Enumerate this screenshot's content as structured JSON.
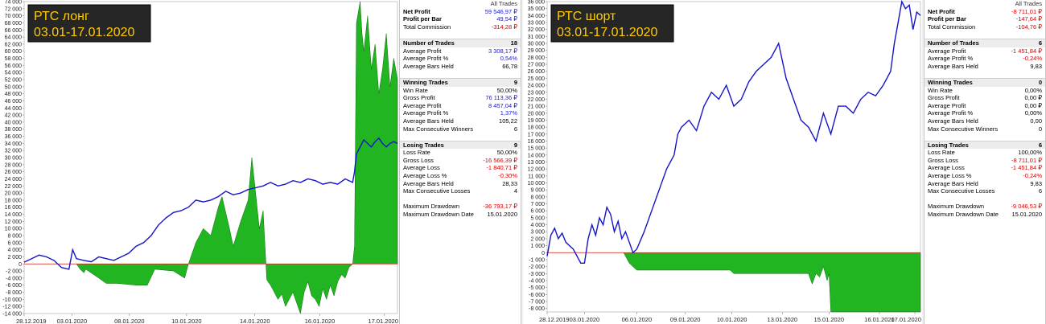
{
  "colors": {
    "equity": "#1414c8",
    "positive": "#22b522",
    "negative": "#22b522",
    "zero": "#dd2222",
    "badge_bg": "#262626",
    "badge_text": "#ffcc00"
  },
  "charts": [
    {
      "badge": {
        "line1": "РТС лонг",
        "line2": "03.01-17.01.2020"
      },
      "chart_data": {
        "type": "line",
        "ylim": [
          -14000,
          74000
        ],
        "ytick_step": 2000,
        "xlim": [
          0,
          100
        ],
        "xticks": [
          {
            "x": 0,
            "label": "28.12.2019"
          },
          {
            "x": 12.8,
            "label": "03.01.2020"
          },
          {
            "x": 28.2,
            "label": "08.01.2020"
          },
          {
            "x": 43.5,
            "label": "10.01.2020"
          },
          {
            "x": 61.8,
            "label": "14.01.2020"
          },
          {
            "x": 79.2,
            "label": "16.01.2020"
          },
          {
            "x": 96.5,
            "label": "17.01.2020"
          }
        ],
        "series": [
          {
            "kind": "equity",
            "x": [
              0,
              2,
              4,
              6,
              8,
              10,
              12,
              13,
              14,
              16,
              18,
              20,
              22,
              24,
              26,
              28,
              30,
              32,
              34,
              36,
              38,
              40,
              42,
              44,
              46,
              48,
              50,
              52,
              54,
              56,
              58,
              60,
              62,
              64,
              66,
              68,
              70,
              72,
              74,
              76,
              78,
              80,
              82,
              84,
              86,
              88,
              88.5,
              89,
              90,
              91,
              92,
              93,
              94,
              95,
              96,
              97,
              98,
              99,
              100
            ],
            "y": [
              500,
              1500,
              2500,
              2000,
              1000,
              -1000,
              -1500,
              4000,
              1500,
              1000,
              600,
              2000,
              1500,
              1000,
              2000,
              3000,
              5000,
              6000,
              8000,
              11000,
              13000,
              14500,
              15000,
              16000,
              18000,
              17500,
              18000,
              19000,
              20500,
              19500,
              20000,
              21000,
              21500,
              22000,
              23000,
              22000,
              22500,
              23500,
              23000,
              24000,
              23500,
              22500,
              23000,
              22500,
              24000,
              23000,
              26000,
              31000,
              33000,
              35000,
              34000,
              33000,
              34500,
              35500,
              34000,
              33000,
              34000,
              34500,
              34000
            ]
          },
          {
            "kind": "profit_area",
            "x": [
              0,
              13,
              14,
              15,
              16,
              16.5,
              20,
              22,
              25,
              30,
              33,
              35,
              40,
              43,
              44,
              46,
              48,
              50,
              52,
              53,
              55,
              56,
              58,
              60,
              61,
              62,
              63,
              64,
              65,
              66,
              67,
              68,
              69,
              70,
              71,
              72,
              73,
              74,
              75,
              76,
              77,
              78,
              79,
              80,
              81,
              82,
              83,
              84,
              85,
              86,
              87,
              88,
              88.5,
              89,
              90,
              90.5,
              91,
              92,
              93,
              94,
              95,
              96,
              97,
              98,
              99,
              100
            ],
            "y": [
              0,
              0,
              0,
              -1500,
              -2500,
              -1500,
              -4000,
              -5500,
              -5500,
              -6000,
              -6000,
              -1500,
              -2000,
              -4000,
              0,
              6000,
              10000,
              8000,
              16000,
              19000,
              10000,
              5000,
              12000,
              18000,
              30000,
              20000,
              10000,
              15000,
              -4500,
              -6000,
              -8000,
              -10000,
              -8500,
              -12000,
              -10000,
              -8000,
              -11000,
              -14000,
              -8000,
              -5000,
              -9000,
              -10000,
              -12000,
              -7000,
              -10000,
              -6000,
              -9000,
              -5000,
              -3000,
              -4000,
              -1000,
              0,
              5000,
              68000,
              74000,
              65000,
              60000,
              70000,
              55000,
              62000,
              48000,
              55000,
              65000,
              50000,
              58000,
              52000
            ]
          }
        ]
      },
      "stats": {
        "header": "All Trades",
        "rows": [
          {
            "k": "Net Profit",
            "v": "59 546,97 ₽",
            "cls": "posb",
            "bold": true
          },
          {
            "k": "Profit per Bar",
            "v": "49,54 ₽",
            "cls": "posb",
            "bold": true
          },
          {
            "k": "Total Commission",
            "v": "-314,28 ₽",
            "cls": "neg"
          },
          {
            "gap": true
          },
          {
            "sec": true,
            "k": "Number of Trades",
            "v": "18"
          },
          {
            "k": "Average Profit",
            "v": "3 308,17 ₽",
            "cls": "posb"
          },
          {
            "k": "Average Profit %",
            "v": "0,54%",
            "cls": "posb"
          },
          {
            "k": "Average Bars Held",
            "v": "66,78"
          },
          {
            "gap": true
          },
          {
            "sec": true,
            "k": "Winning Trades",
            "v": "9"
          },
          {
            "k": "Win Rate",
            "v": "50,00%"
          },
          {
            "k": "Gross Profit",
            "v": "76 113,36 ₽",
            "cls": "posb"
          },
          {
            "k": "Average Profit",
            "v": "8 457,04 ₽",
            "cls": "posb"
          },
          {
            "k": "Average Profit %",
            "v": "1,37%",
            "cls": "posb"
          },
          {
            "k": "Average Bars Held",
            "v": "105,22"
          },
          {
            "k": "Max Consecutive Winners",
            "v": "6"
          },
          {
            "gap": true
          },
          {
            "sec": true,
            "k": "Losing Trades",
            "v": "9"
          },
          {
            "k": "Loss Rate",
            "v": "50,00%"
          },
          {
            "k": "Gross Loss",
            "v": "-16 566,39 ₽",
            "cls": "neg"
          },
          {
            "k": "Average Loss",
            "v": "-1 840,71 ₽",
            "cls": "neg"
          },
          {
            "k": "Average Loss %",
            "v": "-0,30%",
            "cls": "neg"
          },
          {
            "k": "Average Bars Held",
            "v": "28,33"
          },
          {
            "k": "Max Consecutive Losses",
            "v": "4"
          },
          {
            "gap": true
          },
          {
            "k": "Maximum Drawdown",
            "v": "-36 793,17 ₽",
            "cls": "neg"
          },
          {
            "k": "Maximum Drawdown Date",
            "v": "15.01.2020"
          }
        ]
      }
    },
    {
      "badge": {
        "line1": "РТС шорт",
        "line2": "03.01-17.01.2020"
      },
      "chart_data": {
        "type": "line",
        "ylim": [
          -8500,
          36000
        ],
        "ytick_step": 1000,
        "xlim": [
          0,
          100
        ],
        "xticks": [
          {
            "x": 0,
            "label": "28.12.2019"
          },
          {
            "x": 10,
            "label": "03.01.2020"
          },
          {
            "x": 24,
            "label": "06.01.2020"
          },
          {
            "x": 37,
            "label": "09.01.2020"
          },
          {
            "x": 49.5,
            "label": "10.01.2020"
          },
          {
            "x": 63,
            "label": "13.01.2020"
          },
          {
            "x": 75.5,
            "label": "15.01.2020"
          },
          {
            "x": 89,
            "label": "16.01.2020"
          },
          {
            "x": 98.5,
            "label": "17.01.2020"
          }
        ],
        "series": [
          {
            "kind": "equity",
            "x": [
              0,
              1,
              2,
              3,
              4,
              5,
              6,
              7,
              8,
              9,
              10,
              11,
              12,
              13,
              14,
              15,
              16,
              17,
              18,
              19,
              20,
              21,
              22,
              23,
              24,
              26,
              28,
              30,
              32,
              34,
              35,
              36,
              38,
              40,
              42,
              44,
              46,
              48,
              50,
              52,
              54,
              56,
              58,
              60,
              62,
              64,
              66,
              68,
              70,
              72,
              74,
              76,
              78,
              80,
              82,
              84,
              86,
              88,
              90,
              92,
              93,
              94,
              95,
              96,
              97,
              98,
              99,
              100
            ],
            "y": [
              -500,
              2500,
              3500,
              2000,
              2800,
              1500,
              1000,
              500,
              -500,
              -1500,
              -1500,
              2000,
              4000,
              2500,
              5000,
              4000,
              6500,
              5500,
              3000,
              4500,
              2000,
              3000,
              1500,
              0,
              500,
              3000,
              6000,
              9000,
              12000,
              14000,
              17000,
              18000,
              19000,
              17500,
              21000,
              23000,
              22000,
              24000,
              21000,
              22000,
              24500,
              26000,
              27000,
              28000,
              30000,
              25000,
              22000,
              19000,
              18000,
              16000,
              20000,
              17000,
              21000,
              21000,
              20000,
              22000,
              23000,
              22500,
              24000,
              26000,
              30000,
              33000,
              36000,
              35000,
              35500,
              32000,
              34500,
              34000
            ]
          },
          {
            "kind": "loss_area",
            "x": [
              0,
              20,
              20.5,
              21,
              22,
              24,
              26,
              30,
              35,
              40,
              45,
              49,
              50,
              55,
              60,
              65,
              70,
              71,
              72,
              73,
              74,
              75,
              75.5,
              76,
              77,
              100
            ],
            "y": [
              0,
              0,
              0,
              -500,
              -1500,
              -2500,
              -2500,
              -2500,
              -2500,
              -2500,
              -2500,
              -2500,
              -3000,
              -3000,
              -3000,
              -3000,
              -3000,
              -4500,
              -3000,
              -3500,
              -2000,
              -4000,
              -3000,
              -8500,
              -8500,
              -8500
            ]
          }
        ]
      },
      "stats": {
        "header": "All Trades",
        "rows": [
          {
            "k": "Net Profit",
            "v": "-8 711,01 ₽",
            "cls": "neg",
            "bold": true
          },
          {
            "k": "Profit per Bar",
            "v": "-147,64 ₽",
            "cls": "neg",
            "bold": true
          },
          {
            "k": "Total Commission",
            "v": "-104,76 ₽",
            "cls": "neg"
          },
          {
            "gap": true
          },
          {
            "sec": true,
            "k": "Number of Trades",
            "v": "6"
          },
          {
            "k": "Average Profit",
            "v": "-1 451,84 ₽",
            "cls": "neg"
          },
          {
            "k": "Average Profit %",
            "v": "-0,24%",
            "cls": "neg"
          },
          {
            "k": "Average Bars Held",
            "v": "9,83"
          },
          {
            "gap": true
          },
          {
            "sec": true,
            "k": "Winning Trades",
            "v": "0"
          },
          {
            "k": "Win Rate",
            "v": "0,00%"
          },
          {
            "k": "Gross Profit",
            "v": "0,00 ₽"
          },
          {
            "k": "Average Profit",
            "v": "0,00 ₽"
          },
          {
            "k": "Average Profit %",
            "v": "0,00%"
          },
          {
            "k": "Average Bars Held",
            "v": "0,00"
          },
          {
            "k": "Max Consecutive Winners",
            "v": "0"
          },
          {
            "gap": true
          },
          {
            "sec": true,
            "k": "Losing Trades",
            "v": "6"
          },
          {
            "k": "Loss Rate",
            "v": "100,00%"
          },
          {
            "k": "Gross Loss",
            "v": "-8 711,01 ₽",
            "cls": "neg"
          },
          {
            "k": "Average Loss",
            "v": "-1 451,84 ₽",
            "cls": "neg"
          },
          {
            "k": "Average Loss %",
            "v": "-0,24%",
            "cls": "neg"
          },
          {
            "k": "Average Bars Held",
            "v": "9,83"
          },
          {
            "k": "Max Consecutive Losses",
            "v": "6"
          },
          {
            "gap": true
          },
          {
            "k": "Maximum Drawdown",
            "v": "-9 046,53 ₽",
            "cls": "neg"
          },
          {
            "k": "Maximum Drawdown Date",
            "v": "15.01.2020"
          }
        ]
      }
    }
  ]
}
